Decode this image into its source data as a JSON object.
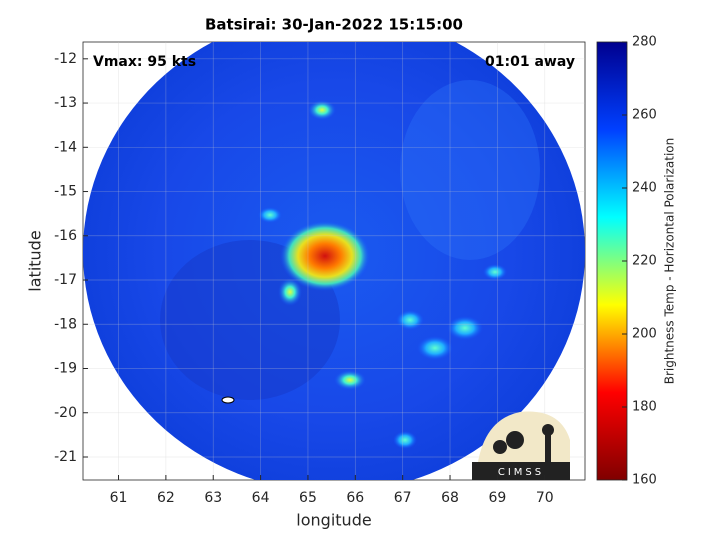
{
  "chart_data": {
    "type": "image",
    "title": "Batsirai: 30-Jan-2022 15:15:00",
    "x_label": "longitude",
    "y_label": "latitude",
    "annotations": [
      "Vmax: 95 kts",
      "01:01 away"
    ],
    "xlim": [
      60.25,
      70.85
    ],
    "xticks": [
      61,
      62,
      63,
      64,
      65,
      66,
      67,
      68,
      69,
      70
    ],
    "ylim": [
      -21.52,
      -11.62
    ],
    "yticks": [
      -12,
      -13,
      -14,
      -15,
      -16,
      -17,
      -18,
      -19,
      -20,
      -21
    ],
    "grid": true,
    "colorbar": {
      "label": "Brightness Temp - Horizontal Polarization",
      "lim": [
        160,
        280
      ],
      "ticks": [
        160,
        180,
        200,
        220,
        240,
        260,
        280
      ],
      "colormap": [
        "#800000",
        "#ff0000",
        "#ffff00",
        "#00ffff",
        "#0040ff",
        "#00008f"
      ]
    },
    "logo": "CIMSS"
  }
}
